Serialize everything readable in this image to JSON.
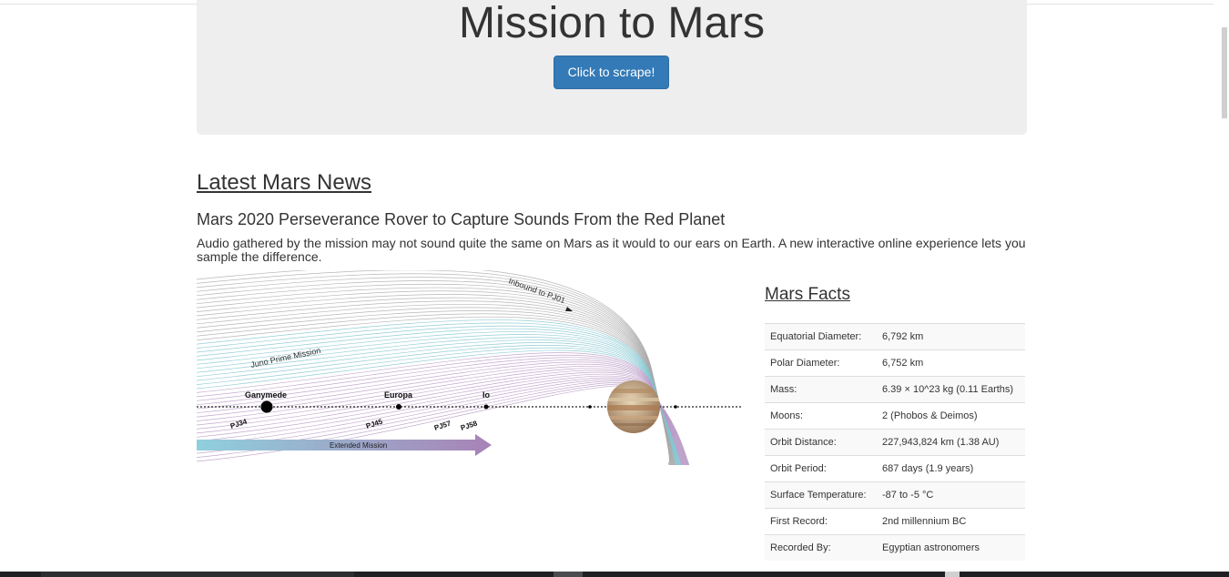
{
  "header": {
    "title": "Mission to Mars",
    "scrape_button": "Click to scrape!"
  },
  "news": {
    "section_heading": "Latest Mars News",
    "title": "Mars 2020 Perseverance Rover to Capture Sounds From the Red Planet",
    "paragraph": "Audio gathered by the mission may not sound quite the same on Mars as it would to our ears on Earth. A new interactive online experience lets you sample the difference."
  },
  "featured_image": {
    "labels": {
      "inbound": "Inbound to PJ01",
      "prime": "Juno Prime Mission",
      "ganymede": "Ganymede",
      "europa": "Europa",
      "io": "Io",
      "pj34": "PJ34",
      "pj45": "PJ45",
      "pj57": "PJ57",
      "pj58": "PJ58",
      "extended": "Extended Mission"
    }
  },
  "facts": {
    "heading": "Mars Facts",
    "rows": [
      {
        "label": "Equatorial Diameter:",
        "value": "6,792 km"
      },
      {
        "label": "Polar Diameter:",
        "value": "6,752 km"
      },
      {
        "label": "Mass:",
        "value": "6.39 × 10^23 kg (0.11 Earths)"
      },
      {
        "label": "Moons:",
        "value": "2 (Phobos & Deimos)"
      },
      {
        "label": "Orbit Distance:",
        "value": "227,943,824 km (1.38 AU)"
      },
      {
        "label": "Orbit Period:",
        "value": "687 days (1.9 years)"
      },
      {
        "label": "Surface Temperature:",
        "value": "-87 to -5 °C"
      },
      {
        "label": "First Record:",
        "value": "2nd millennium BC"
      },
      {
        "label": "Recorded By:",
        "value": "Egyptian astronomers"
      }
    ]
  }
}
